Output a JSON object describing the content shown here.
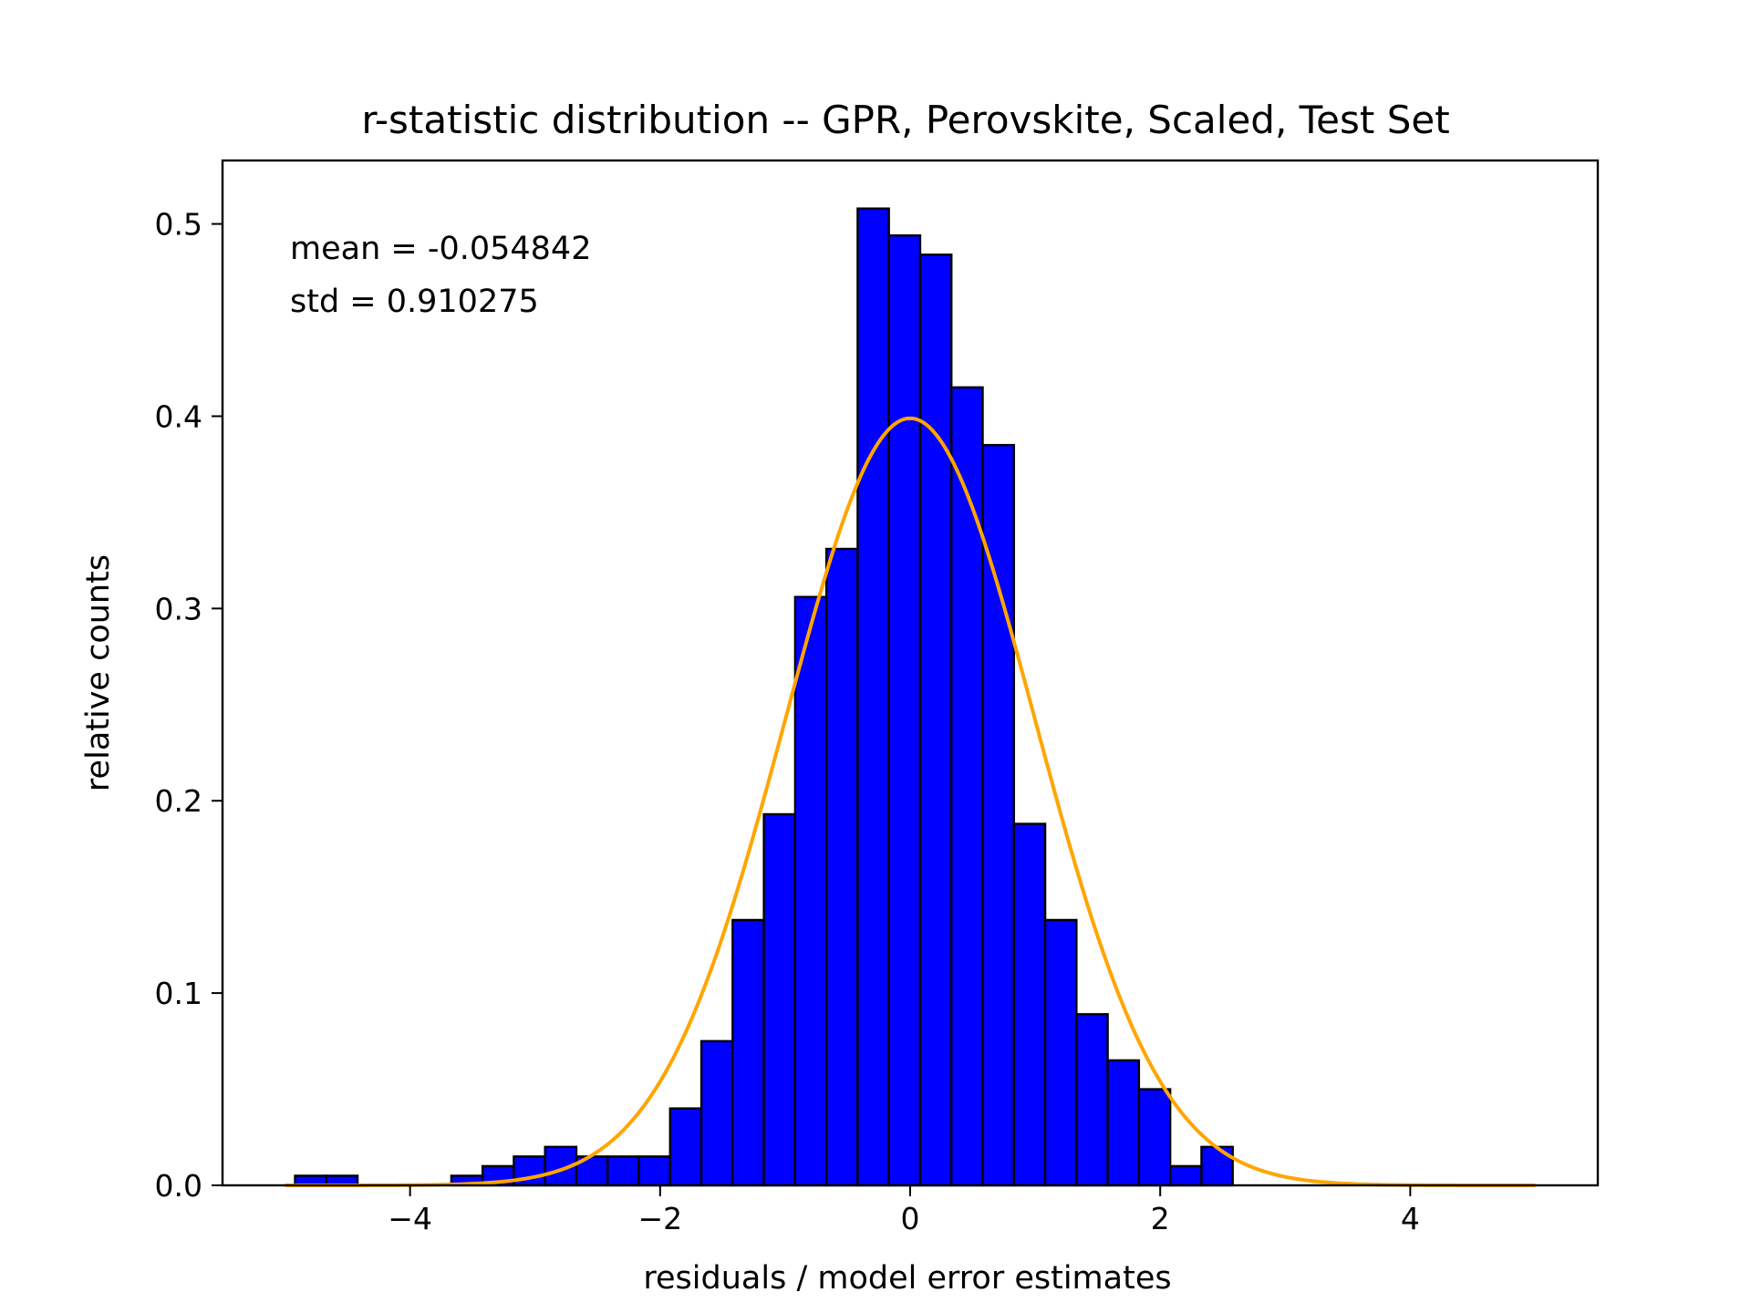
{
  "chart_data": {
    "type": "bar",
    "title": "r-statistic distribution -- GPR, Perovskite, Scaled, Test Set",
    "xlabel": "residuals / model error estimates",
    "ylabel": "relative counts",
    "xlim": [
      -5.5,
      5.5
    ],
    "ylim": [
      0,
      0.533
    ],
    "x_ticks": [
      -4,
      -2,
      0,
      2,
      4
    ],
    "x_tick_labels": [
      "−4",
      "−2",
      "0",
      "2",
      "4"
    ],
    "y_ticks": [
      0.0,
      0.1,
      0.2,
      0.3,
      0.4,
      0.5
    ],
    "y_tick_labels": [
      "0.0",
      "0.1",
      "0.2",
      "0.3",
      "0.4",
      "0.5"
    ],
    "grid": false,
    "annotations": [
      "mean = -0.054842",
      "std = 0.910275"
    ],
    "histogram": {
      "bin_start": -4.92,
      "bin_width": 0.25,
      "values": [
        0.005,
        0.005,
        0,
        0,
        0,
        0.005,
        0.01,
        0.015,
        0.02,
        0.015,
        0.015,
        0.015,
        0.04,
        0.075,
        0.138,
        0.193,
        0.306,
        0.331,
        0.508,
        0.494,
        0.484,
        0.415,
        0.385,
        0.188,
        0.138,
        0.089,
        0.065,
        0.05,
        0.01,
        0.02
      ],
      "fill_color": "#0000ff",
      "edge_color": "#000000"
    },
    "reference_curve": {
      "type": "normal_pdf",
      "mean": 0,
      "std": 1,
      "x_range": [
        -5,
        5
      ],
      "color": "#ffa500"
    }
  }
}
